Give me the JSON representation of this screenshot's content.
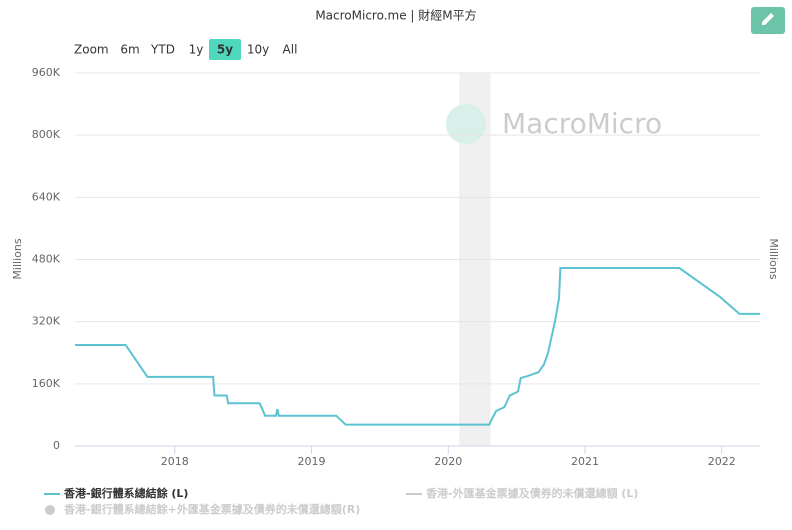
{
  "chart_data": {
    "type": "line",
    "title": "MacroMicro.me | 財經M平方",
    "zoom_label": "Zoom",
    "zoom_buttons": [
      "6m",
      "YTD",
      "1y",
      "5y",
      "10y",
      "All"
    ],
    "zoom_selected": "5y",
    "watermark": "MacroMicro",
    "ylabel": "Millions",
    "y2label": "Millions",
    "xlim": [
      2017.27,
      2022.28
    ],
    "xticks": [
      2018,
      2019,
      2020,
      2021,
      2022
    ],
    "ylim": [
      0,
      960000
    ],
    "yticks": [
      0,
      {
        "value": 160000,
        "label": "160K"
      },
      {
        "value": 320000,
        "label": "320K"
      },
      {
        "value": 480000,
        "label": "480K"
      },
      {
        "value": 640000,
        "label": "640K"
      },
      {
        "value": 800000,
        "label": "800K"
      },
      {
        "value": 960000,
        "label": "960K"
      }
    ],
    "grid": true,
    "shaded_x": [
      2020.08,
      2020.31
    ],
    "x": [
      2017.27,
      2017.64,
      2017.8,
      2018.28,
      2018.29,
      2018.38,
      2018.39,
      2018.62,
      2018.64,
      2018.66,
      2018.74,
      2018.75,
      2018.76,
      2019.18,
      2019.25,
      2020.3,
      2020.32,
      2020.35,
      2020.41,
      2020.45,
      2020.51,
      2020.53,
      2020.58,
      2020.66,
      2020.7,
      2020.73,
      2020.78,
      2020.81,
      2020.82,
      2021.69,
      2021.99,
      2022.13,
      2022.28
    ],
    "series": [
      {
        "name": "香港-銀行體系總結餘 (L)",
        "color": "#5bc3d0",
        "values": [
          260000,
          260000,
          178000,
          178000,
          130000,
          130000,
          110000,
          110000,
          95000,
          78000,
          78000,
          95000,
          78000,
          78000,
          55000,
          55000,
          70000,
          90000,
          100000,
          130000,
          140000,
          175000,
          180000,
          190000,
          210000,
          240000,
          320000,
          380000,
          458000,
          458000,
          383000,
          340000,
          340000
        ]
      }
    ],
    "hidden_legend": [
      {
        "name": "香港-外匯基金票據及債券的未償還總額 (L)",
        "color": "#cccccc",
        "symbol": "line"
      },
      {
        "name": "香港-銀行體系總結餘+外匯基金票據及債券的未償還總額(R)",
        "color": "#cccccc",
        "symbol": "circle"
      }
    ]
  }
}
